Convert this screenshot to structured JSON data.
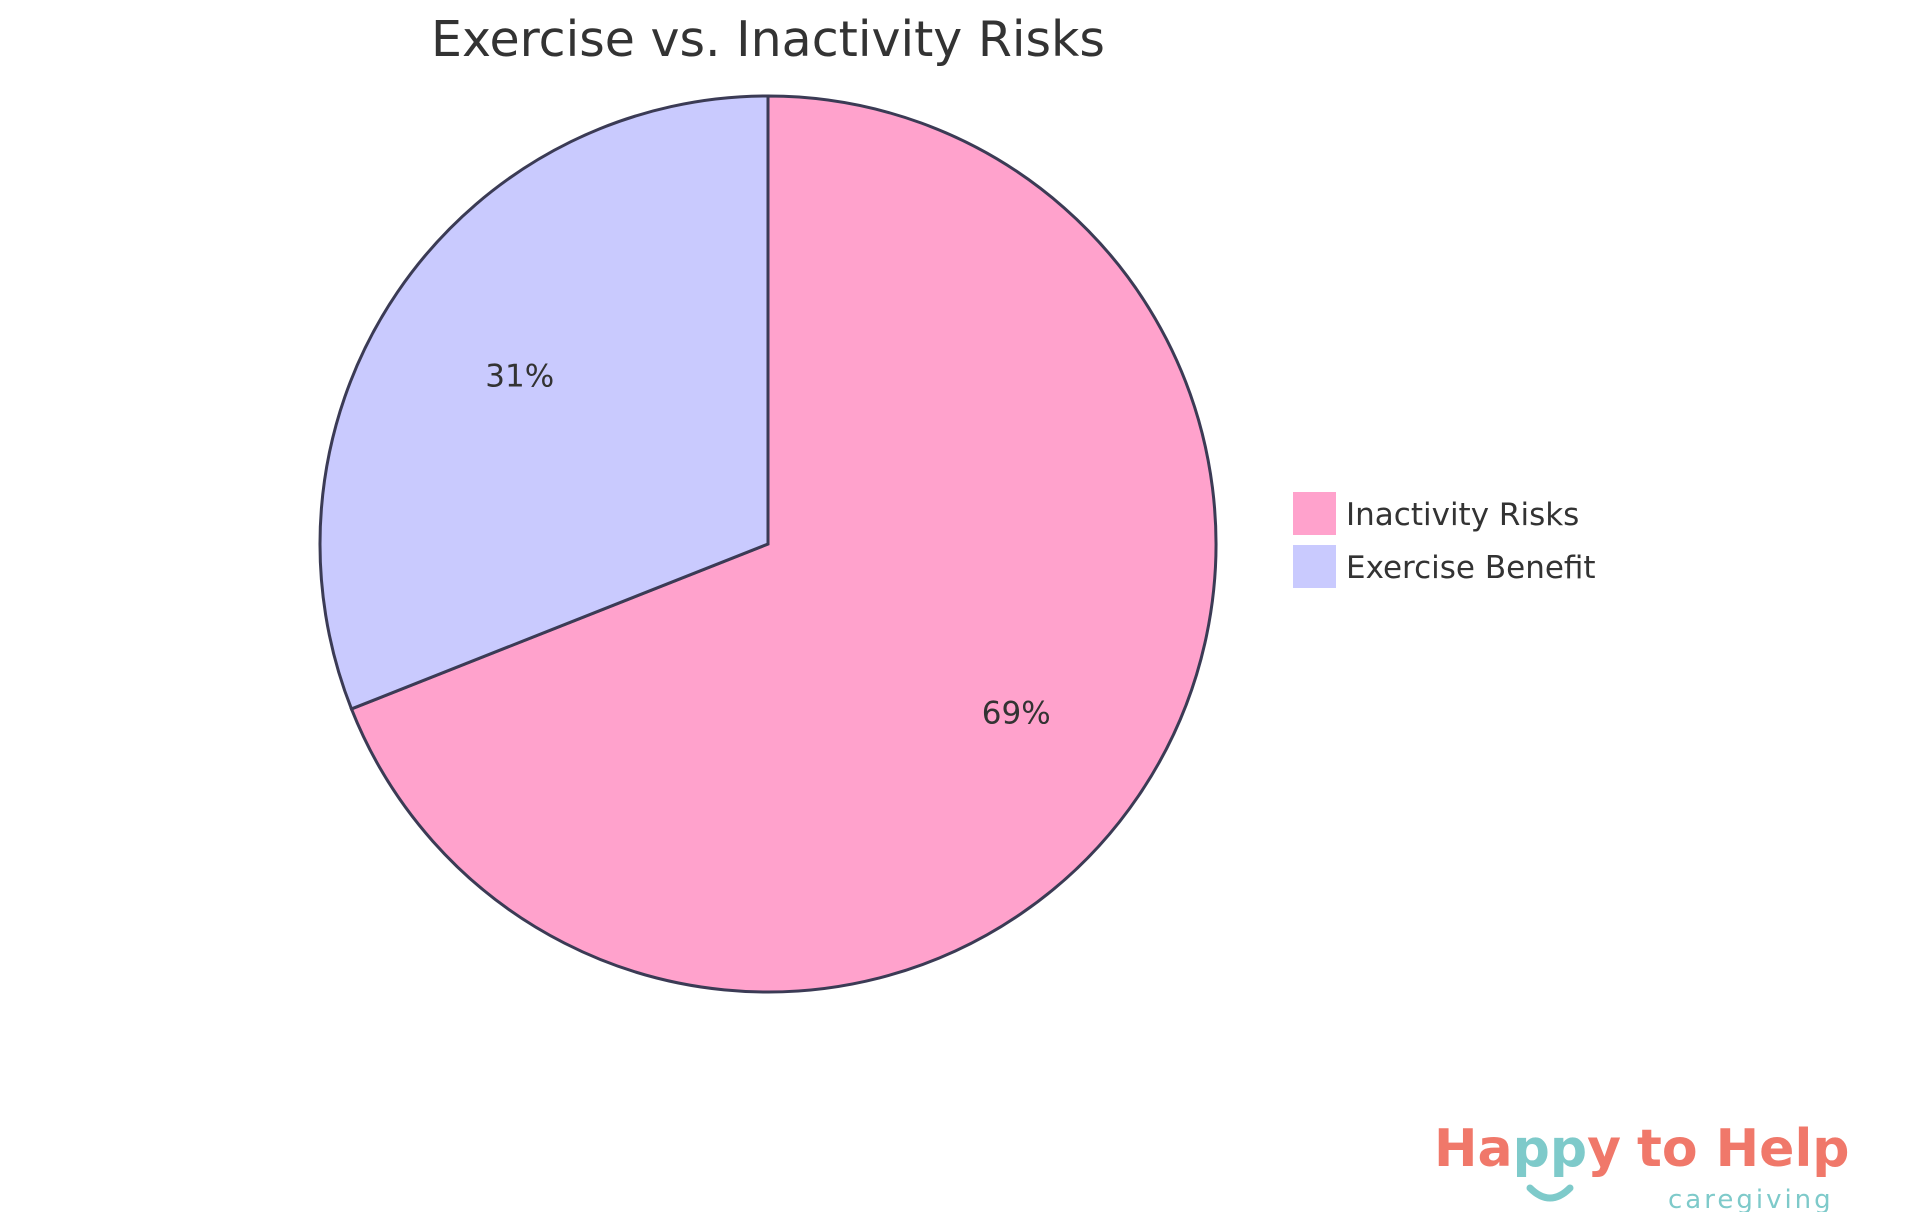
{
  "chart_data": {
    "type": "pie",
    "title": "Exercise vs. Inactivity Risks",
    "categories": [
      "Inactivity Risks",
      "Exercise Benefit"
    ],
    "values": [
      69,
      31
    ],
    "labels": [
      "69%",
      "31%"
    ],
    "colors": [
      "#FFA2CC",
      "#C9CAFE"
    ],
    "legend_position": "right",
    "stroke_color": "#3B3B55"
  },
  "logo": {
    "text_happy": "Ha",
    "text_pp": "pp",
    "text_y": "y",
    "text_rest": "to Help",
    "subtitle": "caregiving",
    "colors": {
      "coral": "#F0786A",
      "teal": "#7ECACA"
    }
  }
}
